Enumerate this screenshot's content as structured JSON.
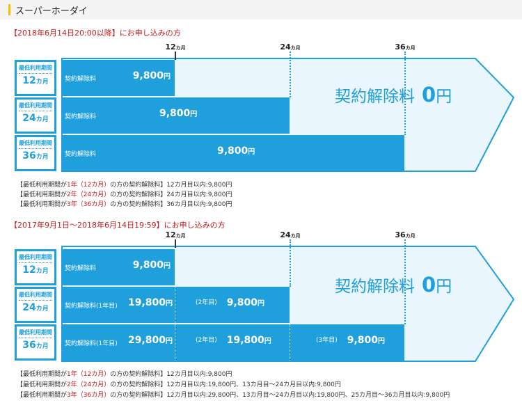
{
  "page_title": "スーパーホーダイ",
  "month_unit": "カ月",
  "yen_unit": "円",
  "sections": [
    {
      "title": "【2018年6月14日20:00以降】にお申し込みの方",
      "months": [
        "12",
        "24",
        "36"
      ],
      "zero_label": "契約解除料",
      "zero_value": "0",
      "rows": [
        {
          "plan_top": "最低利用期間",
          "plan_num": "12",
          "plan_unit": "カ月",
          "label": "契約解除料",
          "amount": "9,800"
        },
        {
          "plan_top": "最低利用期間",
          "plan_num": "24",
          "plan_unit": "カ月",
          "label": "契約解除料",
          "amount": "9,800"
        },
        {
          "plan_top": "最低利用期間",
          "plan_num": "36",
          "plan_unit": "カ月",
          "label": "契約解除料",
          "amount": "9,800"
        }
      ],
      "notes": [
        {
          "pre": "【最低利用期間が",
          "red": "1年（12カ月）",
          "post": "の方の契約解除料】12カ月目以内:9,800円"
        },
        {
          "pre": "【最低利用期間が",
          "red": "2年（24カ月）",
          "post": "の方の契約解除料】24カ月目以内:9,800円"
        },
        {
          "pre": "【最低利用期間が",
          "red": "3年（36カ月）",
          "post": "の方の契約解除料】36カ月目以内:9,800円"
        }
      ]
    },
    {
      "title": "【2017年9月1日～2018年6月14日19:59】にお申し込みの方",
      "months": [
        "12",
        "24",
        "36"
      ],
      "zero_label": "契約解除料",
      "zero_value": "0",
      "rows": [
        {
          "plan_top": "最低利用期間",
          "plan_num": "12",
          "plan_unit": "カ月",
          "label": "契約解除料",
          "amount": "9,800"
        },
        {
          "plan_top": "最低利用期間",
          "plan_num": "24",
          "plan_unit": "カ月",
          "label": "契約解除料(1年目)",
          "amount": "19,800",
          "yr2": "(2年目)",
          "amount2": "9,800"
        },
        {
          "plan_top": "最低利用期間",
          "plan_num": "36",
          "plan_unit": "カ月",
          "label": "契約解除料(1年目)",
          "amount": "29,800",
          "yr2": "(2年目)",
          "amount2": "19,800",
          "yr3": "(3年目)",
          "amount3": "9,800"
        }
      ],
      "notes": [
        {
          "pre": "【最低利用期間が",
          "red": "1年（12カ月）",
          "post": "の方の契約解除料】12カ月目以内:9,800円"
        },
        {
          "pre": "【最低利用期間が",
          "red": "2年（24カ月）",
          "post": "の方の契約解除料】12カ月目以内:19,800円、13カ月目～24カ月目以内:9,800円"
        },
        {
          "pre": "【最低利用期間が",
          "red": "3年（36カ月）",
          "post": "の方の契約解除料】12カ月目以内:29,800円、13カ月目～24カ月目以内:19,800円、25カ月目～36カ月目以内:9,800円"
        }
      ]
    }
  ],
  "colors": {
    "accent": "#1fa0dc",
    "arrow_fill": "#eaf6fd",
    "red": "#c41a1a",
    "header_bar": "#f0c200"
  }
}
